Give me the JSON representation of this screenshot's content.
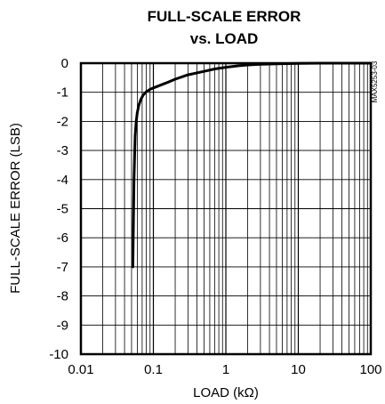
{
  "chart_data": {
    "type": "line",
    "title_line1": "FULL-SCALE ERROR",
    "title_line2": "vs. LOAD",
    "xlabel": "LOAD (kΩ)",
    "ylabel": "FULL-SCALE ERROR (LSB)",
    "figure_id": "MAX5253-03",
    "x_scale": "log",
    "xlim": [
      0.01,
      100
    ],
    "ylim": [
      -10,
      0
    ],
    "x_ticks": [
      "0.01",
      "0.1",
      "1",
      "10",
      "100"
    ],
    "x_tick_values": [
      0.01,
      0.1,
      1,
      10,
      100
    ],
    "y_ticks": [
      "0",
      "-1",
      "-2",
      "-3",
      "-4",
      "-5",
      "-6",
      "-7",
      "-8",
      "-9",
      "-10"
    ],
    "y_tick_values": [
      0,
      -1,
      -2,
      -3,
      -4,
      -5,
      -6,
      -7,
      -8,
      -9,
      -10
    ],
    "grid": true,
    "series": [
      {
        "x": [
          0.052,
          0.054,
          0.056,
          0.058,
          0.06,
          0.063,
          0.067,
          0.072,
          0.08,
          0.09,
          0.1,
          0.15,
          0.2,
          0.3,
          0.5,
          0.7,
          1,
          1.5,
          2,
          3,
          5,
          10,
          20,
          50,
          100
        ],
        "y": [
          -7,
          -4,
          -2.5,
          -2,
          -1.7,
          -1.45,
          -1.25,
          -1.1,
          -0.98,
          -0.9,
          -0.85,
          -0.68,
          -0.55,
          -0.4,
          -0.28,
          -0.2,
          -0.14,
          -0.09,
          -0.06,
          -0.04,
          -0.02,
          -0.01,
          0,
          0,
          0
        ]
      }
    ]
  }
}
